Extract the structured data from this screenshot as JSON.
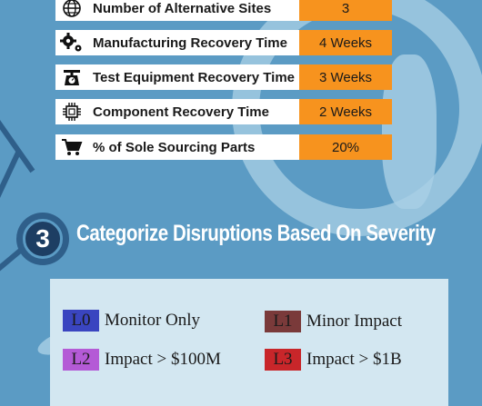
{
  "metrics": [
    {
      "label": "Number of Alternative Sites",
      "value": "3",
      "icon": "globe-icon"
    },
    {
      "label": "Manufacturing Recovery Time",
      "value": "4 Weeks",
      "icon": "gears-icon"
    },
    {
      "label": "Test Equipment Recovery Time",
      "value": "3 Weeks",
      "icon": "scale-icon"
    },
    {
      "label": "Component Recovery Time",
      "value": "2 Weeks",
      "icon": "chip-icon"
    },
    {
      "label": "% of Sole Sourcing Parts",
      "value": "20%",
      "icon": "cart-icon"
    }
  ],
  "section": {
    "number": "3",
    "title": "Categorize Disruptions Based On Severity"
  },
  "severity_levels": [
    {
      "code": "L0",
      "label": "Monitor Only",
      "color": "#3a45c0"
    },
    {
      "code": "L1",
      "label": "Minor Impact",
      "color": "#7a3a3a"
    },
    {
      "code": "L2",
      "label": "Impact > $100M",
      "color": "#b45ad6"
    },
    {
      "code": "L3",
      "label": "Impact > $1B",
      "color": "#c8262a"
    }
  ],
  "colors": {
    "background": "#5b9bc4",
    "value_cell": "#f7931e",
    "legend_panel": "#d3e7f1"
  }
}
